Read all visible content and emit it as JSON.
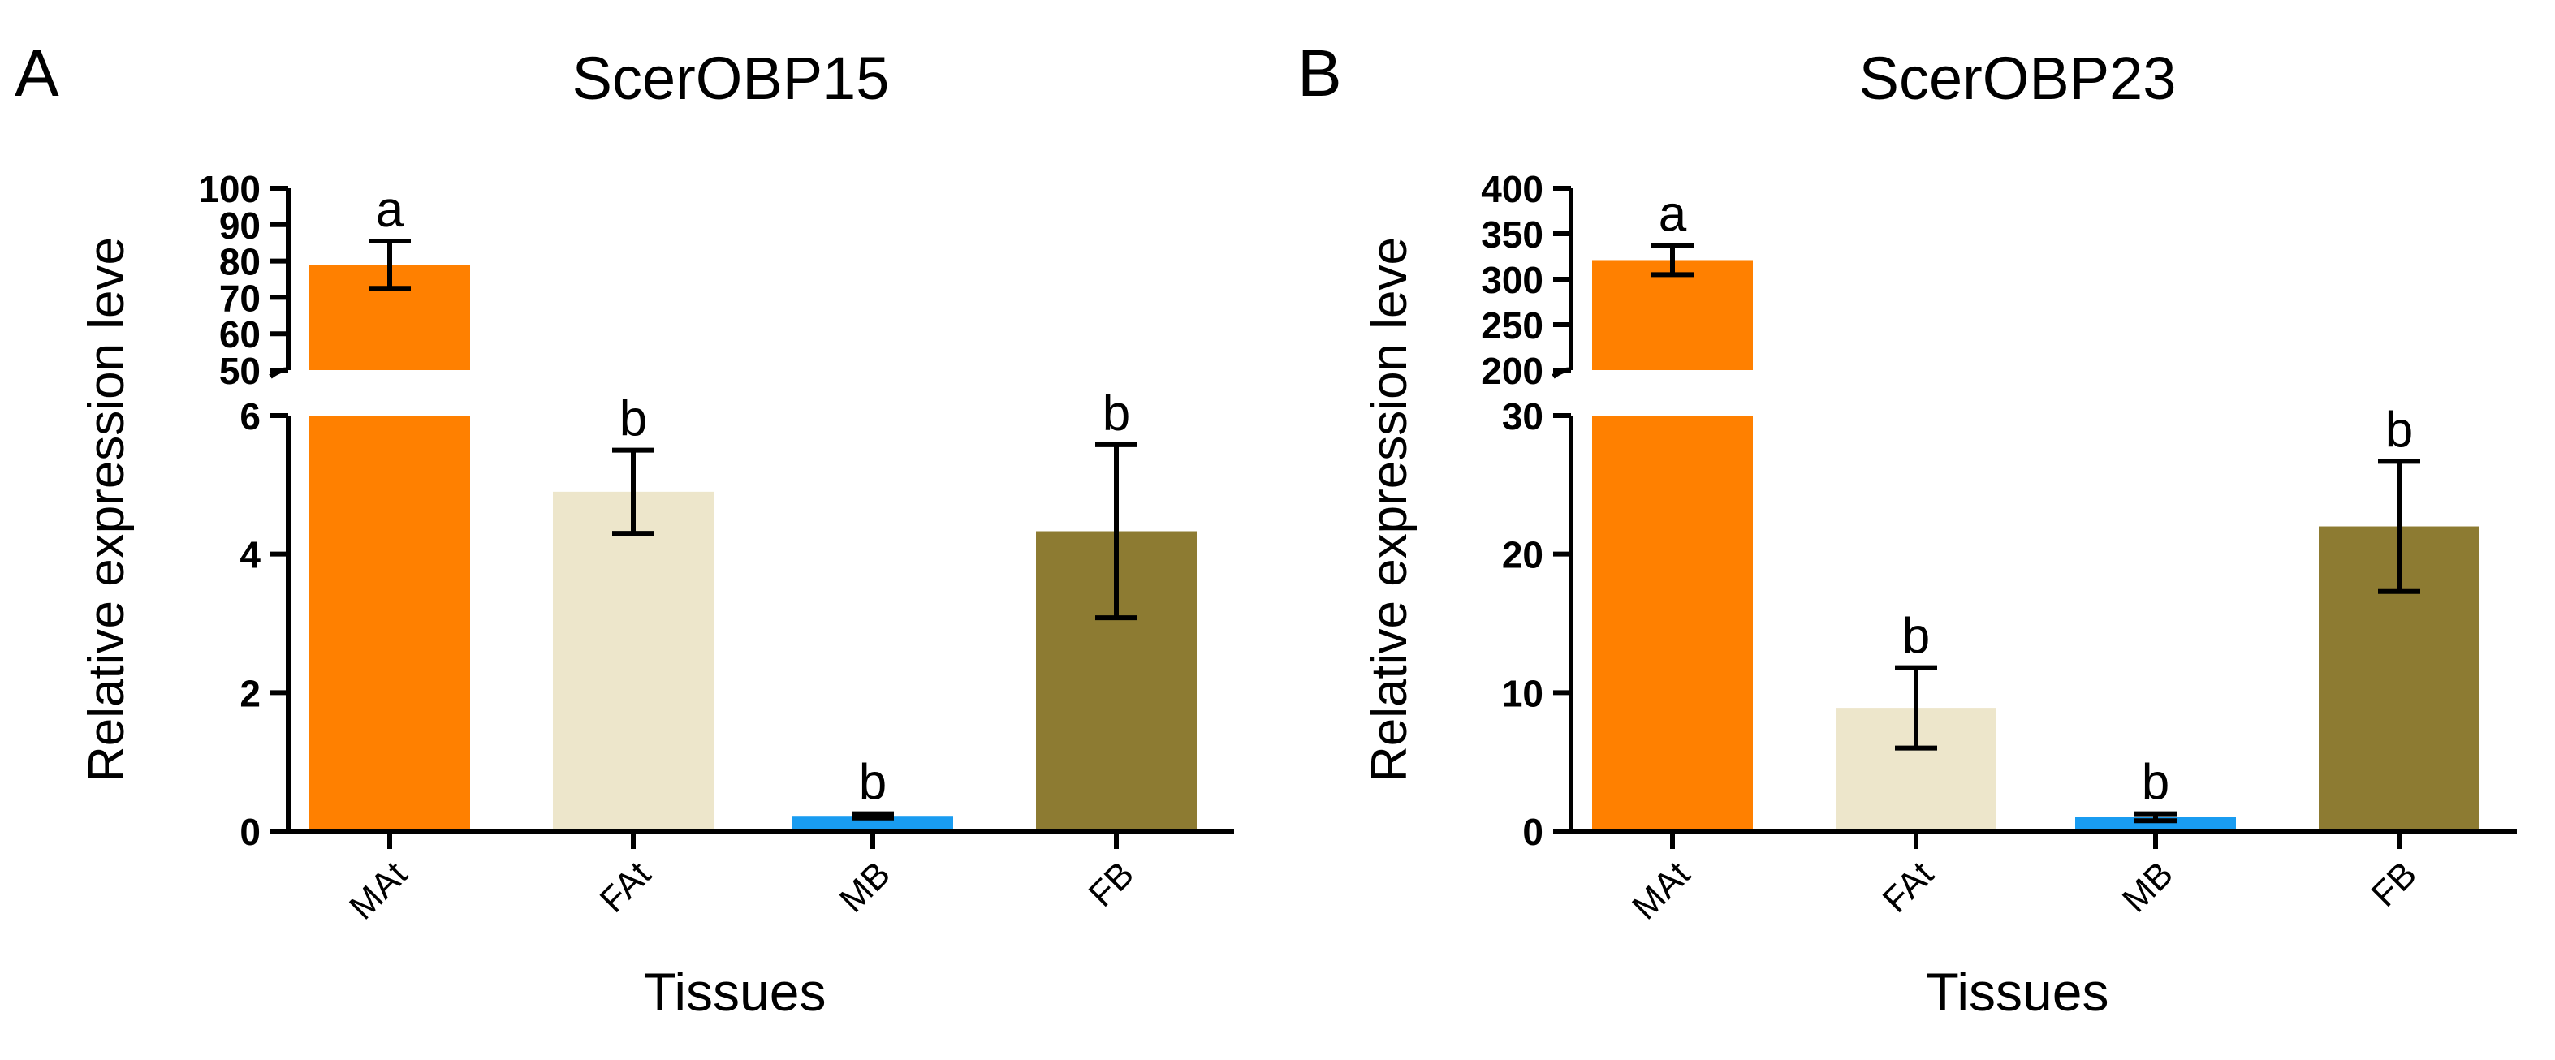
{
  "figure": {
    "panels": [
      {
        "letter": "A"
      },
      {
        "letter": "B"
      }
    ]
  },
  "chart_data": [
    {
      "type": "bar",
      "title": "ScerOBP15",
      "xlabel": "Tissues",
      "ylabel": "Relative expression leve",
      "categories": [
        "MAt",
        "FAt",
        "MB",
        "FB"
      ],
      "values": [
        79,
        4.9,
        0.22,
        4.33
      ],
      "errors": [
        6.5,
        0.6,
        0.03,
        1.25
      ],
      "letters": [
        "a",
        "b",
        "b",
        "b"
      ],
      "colors": [
        "#ff8000",
        "#ede6cb",
        "#199cf1",
        "#8d7b32"
      ],
      "axis_break": true,
      "lower_ylim": [
        0,
        6
      ],
      "lower_ticks": [
        "0",
        "2",
        "4",
        "6"
      ],
      "upper_ylim": [
        50,
        100
      ],
      "upper_ticks": [
        "50",
        "60",
        "70",
        "80",
        "90",
        "100"
      ]
    },
    {
      "type": "bar",
      "title": "ScerOBP23",
      "xlabel": "Tissues",
      "ylabel": "Relative expression leve",
      "categories": [
        "MAt",
        "FAt",
        "MB",
        "FB"
      ],
      "values": [
        321,
        8.9,
        1.0,
        22.0
      ],
      "errors": [
        16,
        2.9,
        0.25,
        4.7
      ],
      "letters": [
        "a",
        "b",
        "b",
        "b"
      ],
      "colors": [
        "#ff8000",
        "#ede6cb",
        "#199cf1",
        "#8d7b32"
      ],
      "axis_break": true,
      "lower_ylim": [
        0,
        30
      ],
      "lower_ticks": [
        "0",
        "10",
        "20",
        "30"
      ],
      "upper_ylim": [
        200,
        400
      ],
      "upper_ticks": [
        "200",
        "250",
        "300",
        "350",
        "400"
      ]
    }
  ]
}
